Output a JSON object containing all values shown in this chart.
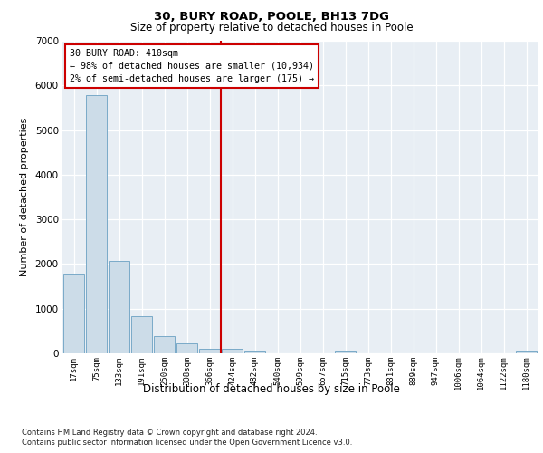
{
  "title": "30, BURY ROAD, POOLE, BH13 7DG",
  "subtitle": "Size of property relative to detached houses in Poole",
  "xlabel": "Distribution of detached houses by size in Poole",
  "ylabel": "Number of detached properties",
  "bar_color": "#ccdce8",
  "bar_edge_color": "#7aaac8",
  "categories": [
    "17sqm",
    "75sqm",
    "133sqm",
    "191sqm",
    "250sqm",
    "308sqm",
    "366sqm",
    "424sqm",
    "482sqm",
    "540sqm",
    "599sqm",
    "657sqm",
    "715sqm",
    "773sqm",
    "831sqm",
    "889sqm",
    "947sqm",
    "1006sqm",
    "1064sqm",
    "1122sqm",
    "1180sqm"
  ],
  "values": [
    1780,
    5780,
    2060,
    830,
    380,
    230,
    110,
    110,
    65,
    0,
    0,
    0,
    65,
    0,
    0,
    0,
    0,
    0,
    0,
    0,
    65
  ],
  "vline_x_index": 7,
  "vline_color": "#cc0000",
  "annotation_text": "30 BURY ROAD: 410sqm\n← 98% of detached houses are smaller (10,934)\n2% of semi-detached houses are larger (175) →",
  "annotation_box_facecolor": "#ffffff",
  "annotation_box_edgecolor": "#cc0000",
  "ylim": [
    0,
    7000
  ],
  "yticks": [
    0,
    1000,
    2000,
    3000,
    4000,
    5000,
    6000,
    7000
  ],
  "footer_line1": "Contains HM Land Registry data © Crown copyright and database right 2024.",
  "footer_line2": "Contains public sector information licensed under the Open Government Licence v3.0.",
  "plot_bg_color": "#e8eef4",
  "fig_bg_color": "#ffffff"
}
